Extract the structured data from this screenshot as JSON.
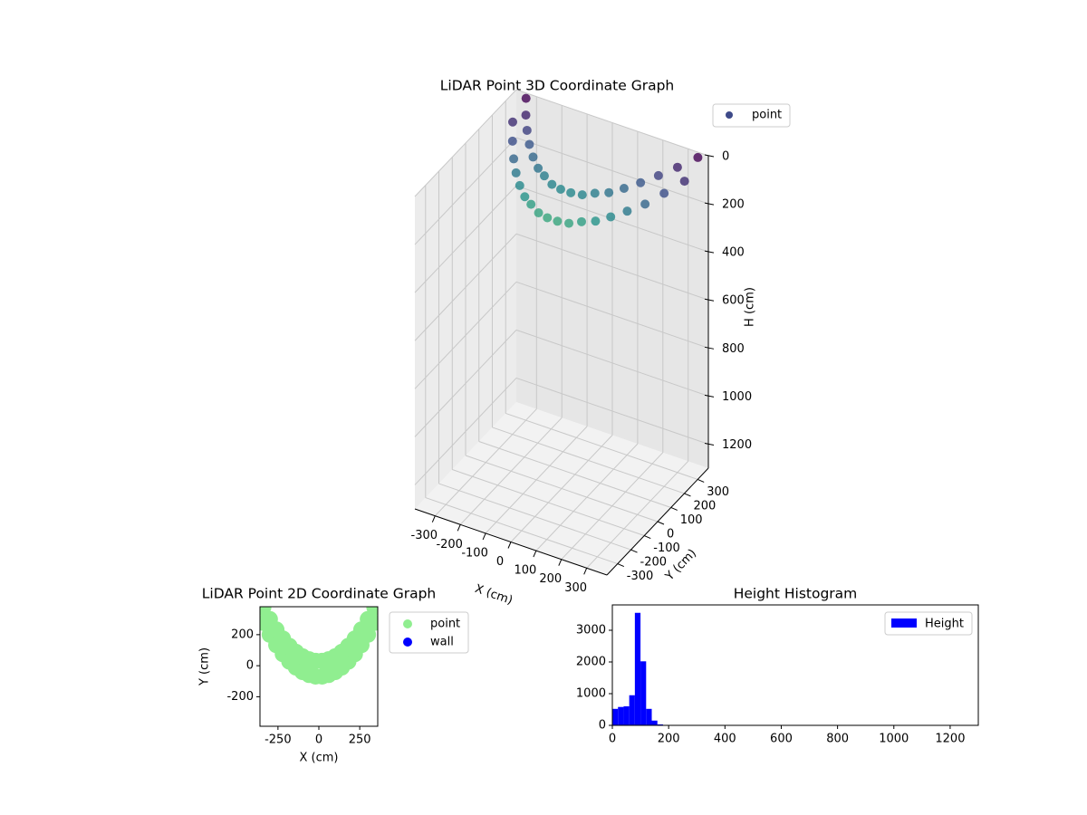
{
  "chart_data": [
    {
      "type": "scatter3d",
      "title": "LiDAR Point 3D Coordinate Graph",
      "xlabel": "X (cm)",
      "ylabel": "Y (cm)",
      "zlabel": "H (cm)",
      "xlim": [
        -380,
        380
      ],
      "ylim": [
        -380,
        380
      ],
      "zlim": [
        0,
        1300
      ],
      "zinverted": true,
      "xticks": [
        -300,
        -200,
        -100,
        0,
        100,
        200,
        300
      ],
      "yticks": [
        -300,
        -200,
        -100,
        0,
        100,
        200,
        300
      ],
      "zticks": [
        0,
        200,
        400,
        600,
        800,
        1000,
        1200
      ],
      "grid": true,
      "legend": "upper right",
      "series": [
        {
          "name": "point",
          "color": "#3e4a89",
          "colormap": [
            "#440154",
            "#3b528b",
            "#21918c",
            "#5ec962",
            "#fde725"
          ],
          "x": [
            -340,
            -300,
            -260,
            -220,
            -180,
            -140,
            -100,
            -60,
            -20,
            20,
            60,
            100,
            140,
            180,
            220,
            260,
            300,
            340,
            -340,
            -300,
            -260,
            -220,
            -180,
            -140,
            -100,
            -60,
            -20,
            20,
            60,
            100,
            140,
            180,
            220,
            260,
            300,
            340
          ],
          "y": [
            277,
            200,
            133,
            75,
            27,
            -11,
            -40,
            -59,
            -69,
            -69,
            -59,
            -40,
            -11,
            27,
            75,
            133,
            200,
            277,
            377,
            300,
            233,
            175,
            127,
            89,
            60,
            41,
            31,
            31,
            41,
            60,
            89,
            127,
            175,
            233,
            300,
            377
          ],
          "z": [
            60,
            80,
            100,
            110,
            120,
            130,
            130,
            140,
            140,
            140,
            140,
            130,
            130,
            120,
            110,
            100,
            80,
            60,
            20,
            30,
            40,
            50,
            60,
            70,
            70,
            80,
            80,
            80,
            80,
            70,
            70,
            60,
            50,
            40,
            30,
            20
          ]
        }
      ]
    },
    {
      "type": "scatter",
      "title": "LiDAR Point 2D Coordinate Graph",
      "xlabel": "X (cm)",
      "ylabel": "Y (cm)",
      "xlim": [
        -360,
        360
      ],
      "ylim": [
        -390,
        380
      ],
      "xticks": [
        -250,
        0,
        250
      ],
      "yticks": [
        -200,
        0,
        200
      ],
      "legend": "upper right",
      "series": [
        {
          "name": "point",
          "color": "#90ee90",
          "x": [
            -340,
            -300,
            -260,
            -220,
            -180,
            -140,
            -100,
            -60,
            -20,
            20,
            60,
            100,
            140,
            180,
            220,
            260,
            300,
            340,
            -340,
            -300,
            -260,
            -220,
            -180,
            -140,
            -100,
            -60,
            -20,
            20,
            60,
            100,
            140,
            180,
            220,
            260,
            300,
            340
          ],
          "y": [
            277,
            200,
            133,
            75,
            27,
            -11,
            -40,
            -59,
            -69,
            -69,
            -59,
            -40,
            -11,
            27,
            75,
            133,
            200,
            277,
            377,
            300,
            233,
            175,
            127,
            89,
            60,
            41,
            31,
            31,
            41,
            60,
            89,
            127,
            175,
            233,
            300,
            377
          ]
        },
        {
          "name": "wall",
          "color": "#0000ff",
          "x": [],
          "y": []
        }
      ]
    },
    {
      "type": "histogram",
      "title": "Height Histogram",
      "xlim": [
        0,
        1300
      ],
      "ylim": [
        0,
        3800
      ],
      "xticks": [
        0,
        200,
        400,
        600,
        800,
        1000,
        1200
      ],
      "yticks": [
        0,
        1000,
        2000,
        3000
      ],
      "legend": "upper right",
      "bins": [
        0,
        20,
        40,
        60,
        80,
        100,
        120,
        140,
        160,
        180
      ],
      "series": [
        {
          "name": "Height",
          "color": "#0000ff",
          "values": [
            520,
            580,
            600,
            950,
            3550,
            2020,
            520,
            150,
            30
          ]
        }
      ]
    }
  ]
}
